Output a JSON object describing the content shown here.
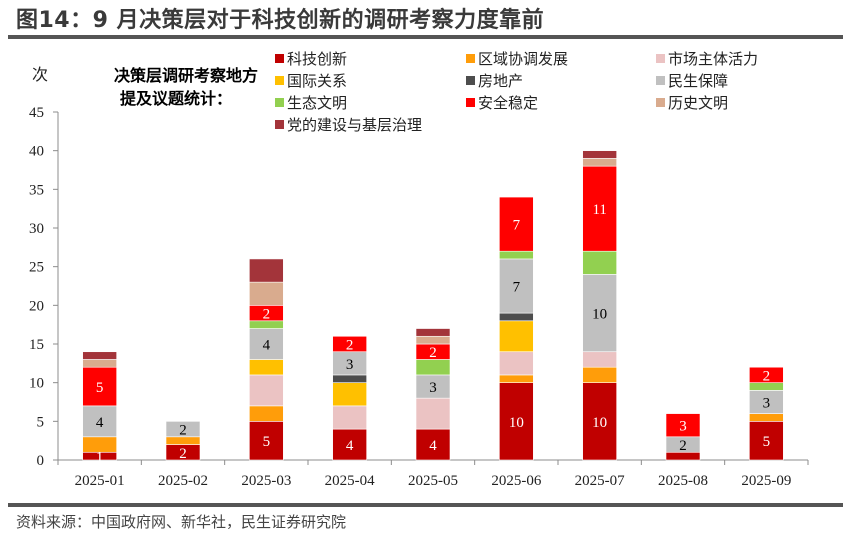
{
  "title": "图14：9 月决策层对于科技创新的调研考察力度靠前",
  "source": "资料来源：中国政府网、新华社，民生证券研究院",
  "chart_data": {
    "type": "bar",
    "stacked": true,
    "title": "决策层调研考察地方提及议题统计：",
    "title_lines": [
      "决策层调研考察地方",
      "提及议题统计："
    ],
    "ylabel": "次",
    "xlabel": "",
    "ylim": [
      0,
      45
    ],
    "yticks": [
      0,
      5,
      10,
      15,
      20,
      25,
      30,
      35,
      40,
      45
    ],
    "grid": false,
    "legend_position": "top-right",
    "categories": [
      "2025-01",
      "2025-02",
      "2025-03",
      "2025-04",
      "2025-05",
      "2025-06",
      "2025-07",
      "2025-08",
      "2025-09"
    ],
    "series": [
      {
        "name": "科技创新",
        "color": "#C00000",
        "label_color": "#ffffff",
        "values": [
          1,
          2,
          5,
          4,
          4,
          10,
          10,
          1,
          5
        ],
        "labels": [
          true,
          true,
          true,
          true,
          true,
          true,
          true,
          false,
          true
        ]
      },
      {
        "name": "区域协调发展",
        "color": "#FF9D0A",
        "label_color": "#ffffff",
        "values": [
          2,
          1,
          2,
          0,
          0,
          1,
          2,
          0,
          1
        ],
        "labels": [
          false,
          false,
          false,
          false,
          false,
          false,
          false,
          false,
          false
        ]
      },
      {
        "name": "市场主体活力",
        "color": "#EBC3C3",
        "label_color": "#000000",
        "values": [
          0,
          0,
          4,
          3,
          4,
          3,
          2,
          0,
          0
        ],
        "labels": [
          false,
          false,
          false,
          false,
          false,
          false,
          false,
          false,
          false
        ]
      },
      {
        "name": "国际关系",
        "color": "#FFC000",
        "label_color": "#000000",
        "values": [
          0,
          0,
          2,
          3,
          0,
          4,
          0,
          0,
          0
        ],
        "labels": [
          false,
          false,
          false,
          false,
          false,
          false,
          false,
          false,
          false
        ]
      },
      {
        "name": "房地产",
        "color": "#4D4D4D",
        "label_color": "#ffffff",
        "values": [
          0,
          0,
          0,
          1,
          0,
          1,
          0,
          0,
          0
        ],
        "labels": [
          false,
          false,
          false,
          false,
          false,
          false,
          false,
          false,
          false
        ]
      },
      {
        "name": "民生保障",
        "color": "#C0C0C0",
        "label_color": "#000000",
        "values": [
          4,
          2,
          4,
          3,
          3,
          7,
          10,
          2,
          3
        ],
        "labels": [
          true,
          true,
          true,
          true,
          true,
          true,
          true,
          true,
          true
        ]
      },
      {
        "name": "生态文明",
        "color": "#92D050",
        "label_color": "#000000",
        "values": [
          0,
          0,
          1,
          0,
          2,
          1,
          3,
          0,
          1
        ],
        "labels": [
          false,
          false,
          false,
          false,
          false,
          false,
          false,
          false,
          false
        ]
      },
      {
        "name": "安全稳定",
        "color": "#FF0000",
        "label_color": "#ffffff",
        "values": [
          5,
          0,
          2,
          2,
          2,
          7,
          11,
          3,
          2
        ],
        "labels": [
          true,
          false,
          true,
          true,
          true,
          true,
          true,
          true,
          true
        ]
      },
      {
        "name": "历史文明",
        "color": "#D9AB8E",
        "label_color": "#000000",
        "values": [
          1,
          0,
          3,
          0,
          1,
          0,
          1,
          0,
          0
        ],
        "labels": [
          false,
          false,
          false,
          false,
          false,
          false,
          false,
          false,
          false
        ]
      },
      {
        "name": "党的建设与基层治理",
        "color": "#A3343A",
        "label_color": "#ffffff",
        "values": [
          1,
          0,
          3,
          0,
          1,
          0,
          1,
          0,
          0
        ],
        "labels": [
          false,
          false,
          false,
          false,
          false,
          false,
          false,
          false,
          false
        ]
      }
    ],
    "legend_order": [
      "科技创新",
      "区域协调发展",
      "市场主体活力",
      "国际关系",
      "房地产",
      "民生保障",
      "生态文明",
      "安全稳定",
      "历史文明",
      "党的建设与基层治理"
    ]
  }
}
